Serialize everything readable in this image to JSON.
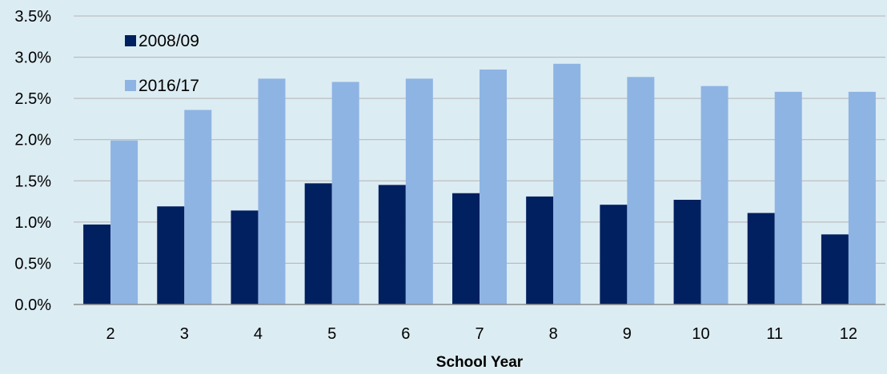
{
  "chart_data": {
    "type": "bar",
    "xlabel": "School Year",
    "ylabel": "",
    "ylim": [
      0,
      3.5
    ],
    "yticks": [
      "0.0%",
      "0.5%",
      "1.0%",
      "1.5%",
      "2.0%",
      "2.5%",
      "3.0%",
      "3.5%"
    ],
    "grid": true,
    "legend_position": "top-left",
    "categories": [
      "2",
      "3",
      "4",
      "5",
      "6",
      "7",
      "8",
      "9",
      "10",
      "11",
      "12"
    ],
    "series": [
      {
        "name": "2008/09",
        "color": "#002060",
        "values": [
          0.97,
          1.19,
          1.14,
          1.47,
          1.45,
          1.35,
          1.31,
          1.21,
          1.27,
          1.11,
          0.85
        ]
      },
      {
        "name": "2016/17",
        "color": "#8eb4e3",
        "values": [
          1.99,
          2.36,
          2.74,
          2.7,
          2.74,
          2.85,
          2.92,
          2.76,
          2.65,
          2.58,
          2.58
        ]
      }
    ]
  }
}
